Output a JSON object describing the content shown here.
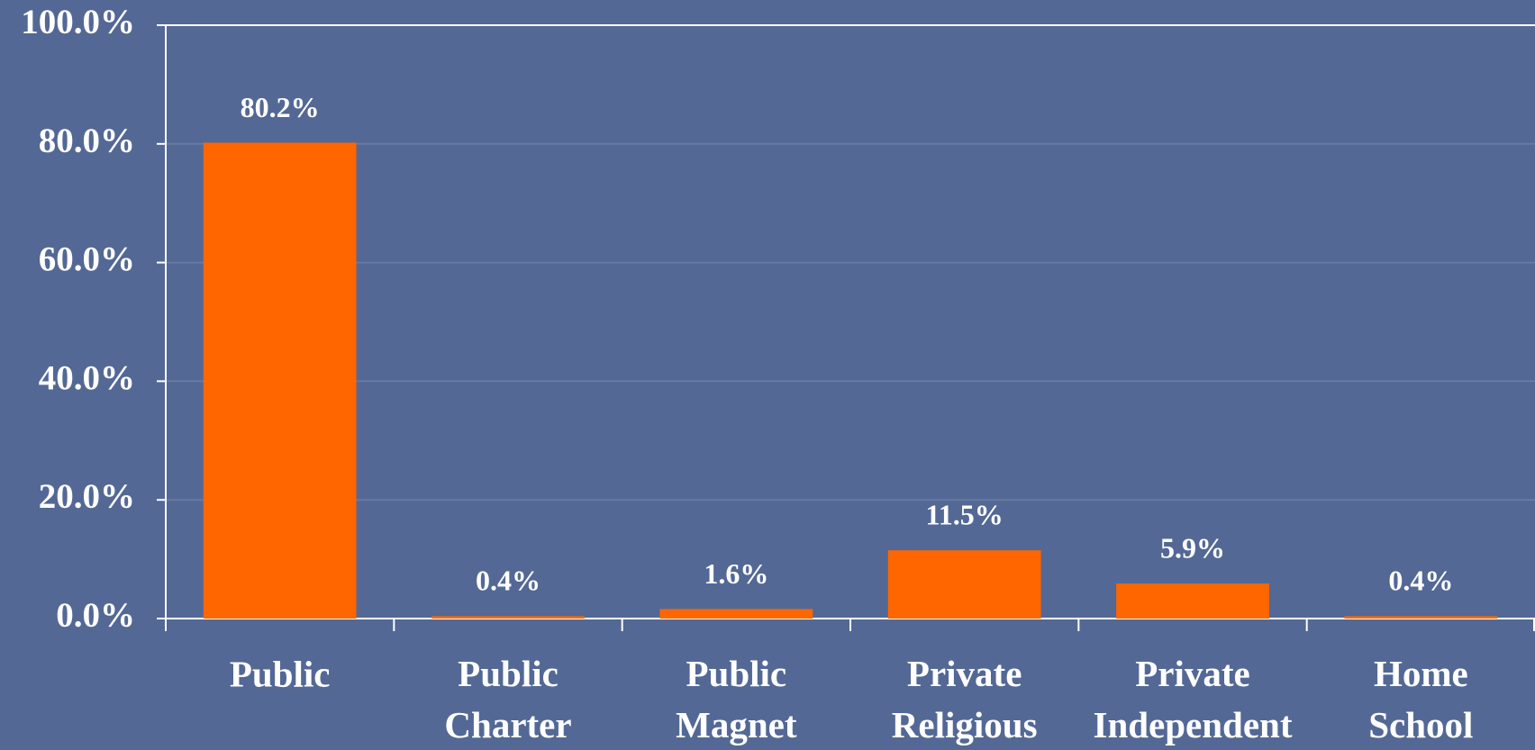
{
  "chart_data": {
    "type": "bar",
    "categories": [
      "Public",
      "Public Charter",
      "Public Magnet",
      "Private Religious",
      "Private Independent",
      "Home School"
    ],
    "values": [
      80.2,
      0.4,
      1.6,
      11.5,
      5.9,
      0.4
    ],
    "value_labels": [
      "80.2%",
      "0.4%",
      "1.6%",
      "11.5%",
      "5.9%",
      "0.4%"
    ],
    "color": "#ff6600",
    "ylim": [
      0,
      100
    ],
    "yticks": [
      {
        "value": 0,
        "label": "0.0%"
      },
      {
        "value": 20,
        "label": "20.0%"
      },
      {
        "value": 40,
        "label": "40.0%"
      },
      {
        "value": 60,
        "label": "60.0%"
      },
      {
        "value": 80,
        "label": "80.0%"
      },
      {
        "value": 100,
        "label": "100.0%"
      }
    ],
    "grid": true
  }
}
